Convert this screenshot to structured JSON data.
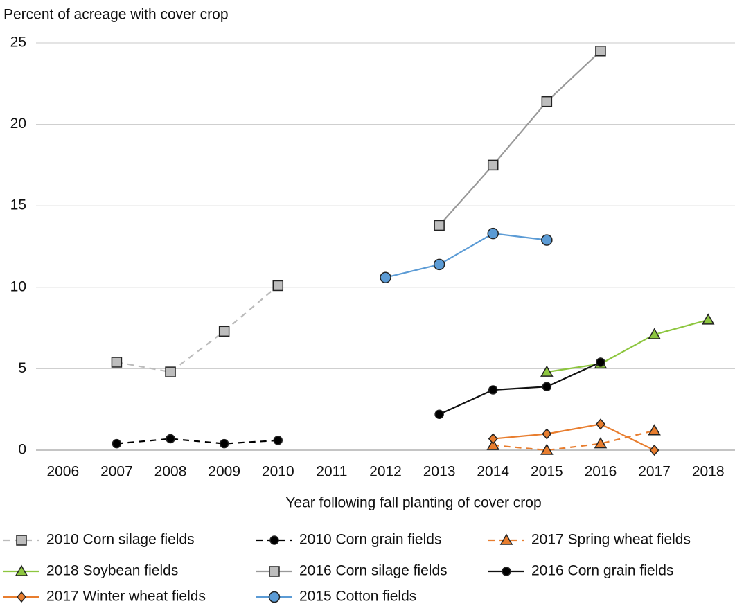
{
  "chart_data": {
    "type": "line",
    "title": "Percent of acreage with cover crop",
    "x_label": "Year following fall planting of cover crop",
    "categories": [
      "2006",
      "2007",
      "2008",
      "2009",
      "2010",
      "2011",
      "2012",
      "2013",
      "2014",
      "2015",
      "2016",
      "2017",
      "2018"
    ],
    "ylim": [
      0,
      25
    ],
    "yticks": [
      0,
      5,
      10,
      15,
      20,
      25
    ],
    "grid": true,
    "series": [
      {
        "name": "2010 Corn silage fields",
        "color": "#bbbbbb",
        "marker": "square",
        "marker_fill": "#bdbdbd",
        "dash": true,
        "values": [
          null,
          5.4,
          4.8,
          7.3,
          10.1,
          null,
          null,
          null,
          null,
          null,
          null,
          null,
          null
        ]
      },
      {
        "name": "2010 Corn grain fields",
        "color": "#000000",
        "marker": "circle",
        "marker_fill": "#000000",
        "dash": true,
        "values": [
          null,
          0.4,
          0.7,
          0.4,
          0.6,
          null,
          null,
          null,
          null,
          null,
          null,
          null,
          null
        ]
      },
      {
        "name": "2017 Spring wheat fields",
        "color": "#e87d2e",
        "marker": "triangle",
        "marker_fill": "#e87d2e",
        "dash": true,
        "values": [
          null,
          null,
          null,
          null,
          null,
          null,
          null,
          null,
          0.3,
          0.0,
          0.4,
          1.2,
          null
        ]
      },
      {
        "name": "2018 Soybean fields",
        "color": "#8dc63f",
        "marker": "triangle",
        "marker_fill": "#8dc63f",
        "dash": false,
        "values": [
          null,
          null,
          null,
          null,
          null,
          null,
          null,
          null,
          null,
          4.8,
          5.3,
          7.1,
          8.0
        ]
      },
      {
        "name": "2016 Corn silage fields",
        "color": "#999999",
        "marker": "square",
        "marker_fill": "#bdbdbd",
        "dash": false,
        "values": [
          null,
          null,
          null,
          null,
          null,
          null,
          null,
          13.8,
          17.5,
          21.4,
          24.5,
          null,
          null
        ]
      },
      {
        "name": "2016 Corn grain fields",
        "color": "#111111",
        "marker": "circle",
        "marker_fill": "#000000",
        "dash": false,
        "values": [
          null,
          null,
          null,
          null,
          null,
          null,
          null,
          2.2,
          3.7,
          3.9,
          5.4,
          null,
          null
        ]
      },
      {
        "name": "2017 Winter wheat fields",
        "color": "#e87d2e",
        "marker": "diamond",
        "marker_fill": "#e87d2e",
        "dash": false,
        "values": [
          null,
          null,
          null,
          null,
          null,
          null,
          null,
          null,
          0.7,
          1.0,
          1.6,
          0.0,
          null
        ]
      },
      {
        "name": "2015 Cotton fields",
        "color": "#5b9bd5",
        "marker": "circle",
        "marker_fill": "#5b9bd5",
        "dash": false,
        "values": [
          null,
          null,
          null,
          null,
          null,
          null,
          10.6,
          11.4,
          13.3,
          12.9,
          null,
          null,
          null
        ]
      }
    ]
  }
}
